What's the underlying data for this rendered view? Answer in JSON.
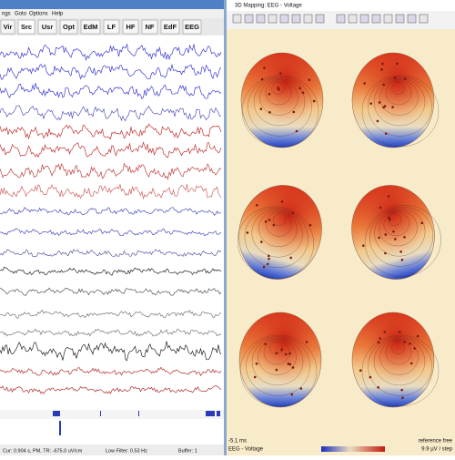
{
  "left_window": {
    "menu": [
      "ngs",
      "Goto",
      "Options",
      "Help"
    ],
    "toolbar": [
      "Vir",
      "Src",
      "Usr",
      "Opt",
      "EdM",
      "LF",
      "HF",
      "NF",
      "EdF",
      "EEG"
    ],
    "status": [
      "Cur: 0.904 s, PM, TR: -675.0 uV/cm",
      "Low Filter: 0.53 Hz",
      "Buffer: 1"
    ]
  },
  "right_window": {
    "title": "3D Mapping: EEG - Voltage",
    "time": "-5.1 ms",
    "mode": "EEG - Voltage",
    "reference": "reference free",
    "scale": "9.9 µV / step"
  }
}
